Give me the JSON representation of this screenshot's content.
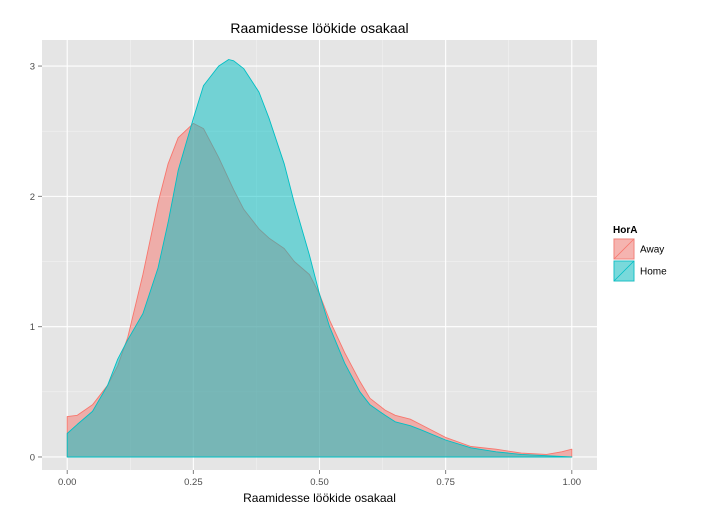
{
  "chart_data": {
    "type": "area",
    "subtype": "density",
    "title": "Raamidesse löökide osakaal",
    "xlabel": "Raamidesse löökide osakaal",
    "ylabel": "",
    "xlim": [
      0,
      1
    ],
    "ylim": [
      0,
      3.2
    ],
    "xticks": [
      0,
      0.25,
      0.5,
      0.75,
      1
    ],
    "xtick_labels": [
      "0.00",
      "0.25",
      "0.50",
      "0.75",
      "1.00"
    ],
    "yticks": [
      0,
      1,
      2,
      3
    ],
    "ytick_labels": [
      "0",
      "1",
      "2",
      "3"
    ],
    "grid": true,
    "legend": {
      "title": "HorA",
      "position": "right"
    },
    "series": [
      {
        "name": "Away",
        "fill": "#F8766D",
        "stroke": "#F8766D",
        "x": [
          0.0,
          0.02,
          0.05,
          0.08,
          0.1,
          0.12,
          0.15,
          0.18,
          0.2,
          0.22,
          0.25,
          0.27,
          0.3,
          0.33,
          0.35,
          0.38,
          0.4,
          0.43,
          0.45,
          0.48,
          0.5,
          0.52,
          0.55,
          0.58,
          0.6,
          0.63,
          0.65,
          0.68,
          0.7,
          0.75,
          0.8,
          0.85,
          0.9,
          0.95,
          0.98,
          1.0
        ],
        "y": [
          0.31,
          0.32,
          0.4,
          0.55,
          0.7,
          0.92,
          1.4,
          1.95,
          2.25,
          2.45,
          2.56,
          2.52,
          2.3,
          2.05,
          1.9,
          1.75,
          1.68,
          1.6,
          1.5,
          1.4,
          1.25,
          1.05,
          0.8,
          0.58,
          0.45,
          0.36,
          0.32,
          0.29,
          0.25,
          0.15,
          0.08,
          0.06,
          0.03,
          0.02,
          0.04,
          0.06
        ]
      },
      {
        "name": "Home",
        "fill": "#00BFC4",
        "stroke": "#00BFC4",
        "x": [
          0.0,
          0.02,
          0.05,
          0.08,
          0.1,
          0.12,
          0.15,
          0.18,
          0.2,
          0.22,
          0.25,
          0.27,
          0.3,
          0.32,
          0.33,
          0.35,
          0.38,
          0.4,
          0.43,
          0.45,
          0.48,
          0.5,
          0.52,
          0.55,
          0.58,
          0.6,
          0.63,
          0.65,
          0.68,
          0.7,
          0.75,
          0.8,
          0.85,
          0.9,
          0.95,
          1.0
        ],
        "y": [
          0.18,
          0.25,
          0.35,
          0.55,
          0.75,
          0.9,
          1.1,
          1.45,
          1.8,
          2.2,
          2.6,
          2.85,
          3.0,
          3.05,
          3.04,
          2.98,
          2.8,
          2.6,
          2.25,
          1.95,
          1.55,
          1.25,
          1.0,
          0.72,
          0.5,
          0.4,
          0.32,
          0.27,
          0.24,
          0.21,
          0.13,
          0.07,
          0.04,
          0.02,
          0.01,
          0.0
        ]
      }
    ]
  }
}
